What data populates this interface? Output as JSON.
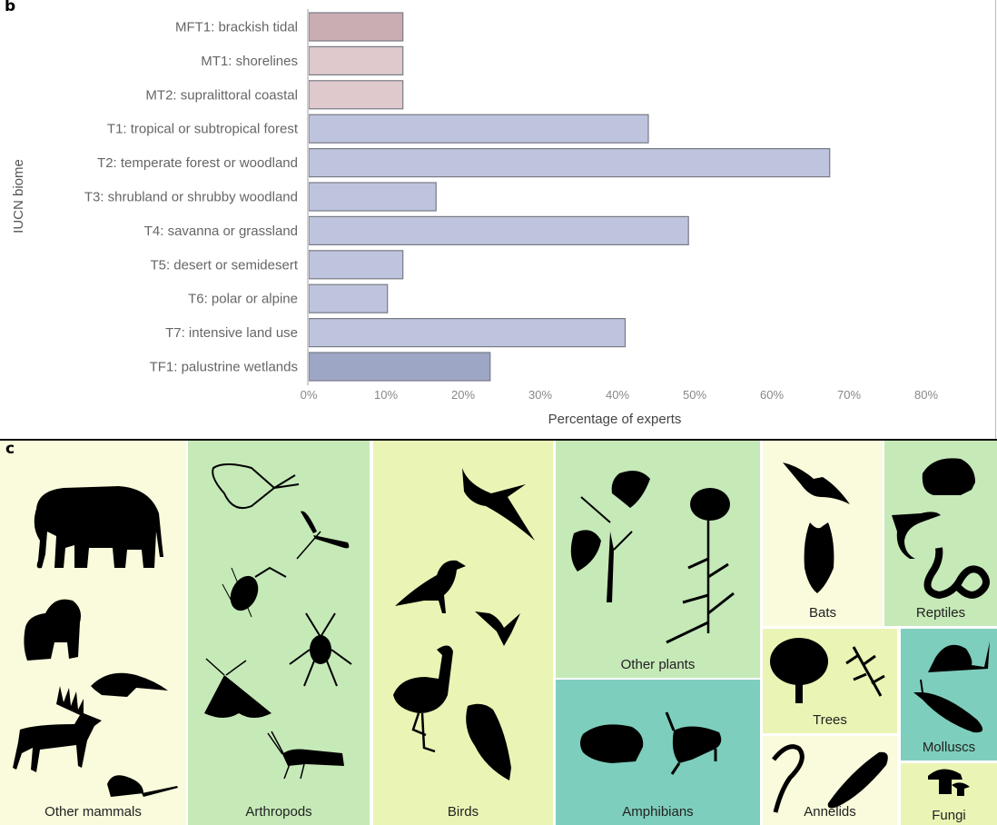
{
  "panel_b": {
    "label": "b"
  },
  "panel_c": {
    "label": "c",
    "tiles": [
      {
        "name": "Other mammals",
        "color": "#fafadc",
        "icons": [
          "elephant-icon",
          "gorilla-icon",
          "pangolin-icon",
          "deer-icon",
          "mouse-icon"
        ]
      },
      {
        "name": "Arthropods",
        "color": "#c6e9b8",
        "icons": [
          "butterfly-icon",
          "dragonfly-icon",
          "wasp-icon",
          "spider-icon",
          "moth-icon",
          "grasshopper-icon"
        ]
      },
      {
        "name": "Birds",
        "color": "#eaf5b5",
        "icons": [
          "swift-icon",
          "crow-icon",
          "hummingbird-icon",
          "flamingo-icon",
          "owl-icon"
        ]
      },
      {
        "name": "Other plants",
        "color": "#c6e9b8",
        "icons": [
          "vine-plant-icon",
          "yarrow-plant-icon"
        ]
      },
      {
        "name": "Amphibians",
        "color": "#7ecebd",
        "icons": [
          "toad-icon",
          "frog-icon"
        ]
      },
      {
        "name": "Bats",
        "color": "#fafadc",
        "icons": [
          "flying-bat-icon",
          "hanging-bat-icon"
        ]
      },
      {
        "name": "Reptiles",
        "color": "#c6e9b8",
        "icons": [
          "tortoise-icon",
          "lizard-icon",
          "snake-icon"
        ]
      },
      {
        "name": "Trees",
        "color": "#eaf5b5",
        "icons": [
          "tree-icon",
          "conifer-branch-icon"
        ]
      },
      {
        "name": "Annelids",
        "color": "#fafadc",
        "icons": [
          "worm-icon",
          "leech-icon"
        ]
      },
      {
        "name": "Molluscs",
        "color": "#7ecebd",
        "icons": [
          "snail-icon",
          "slug-icon"
        ]
      },
      {
        "name": "Fungi",
        "color": "#eaf5b5",
        "icons": [
          "mushroom-icon"
        ]
      }
    ]
  },
  "chart_data": {
    "type": "bar",
    "orientation": "horizontal",
    "title": "",
    "xlabel": "Percentage of experts",
    "ylabel": "IUCN biome",
    "xlim": [
      0,
      80
    ],
    "xticks": [
      "0%",
      "10%",
      "20%",
      "30%",
      "40%",
      "50%",
      "60%",
      "70%",
      "80%"
    ],
    "grid": false,
    "categories": [
      "MFT1: brackish tidal",
      "MT1: shorelines",
      "MT2: supralittoral coastal",
      "T1: tropical or subtropical forest",
      "T2: temperate forest or woodland",
      "T3: shrubland or shrubby woodland",
      "T4: savanna or grassland",
      "T5: desert or semidesert",
      "T6: polar or alpine",
      "T7: intensive land use",
      "TF1: palustrine wetlands"
    ],
    "values": [
      12.2,
      12.2,
      12.2,
      44.0,
      67.5,
      16.5,
      49.2,
      12.2,
      10.2,
      41.0,
      23.5
    ],
    "colors": [
      "#c9adb2",
      "#dfc9cc",
      "#dfc9cc",
      "#bfc4de",
      "#bfc4de",
      "#bfc4de",
      "#bfc4de",
      "#bfc4de",
      "#bfc4de",
      "#bfc4de",
      "#9ea6c6"
    ]
  }
}
